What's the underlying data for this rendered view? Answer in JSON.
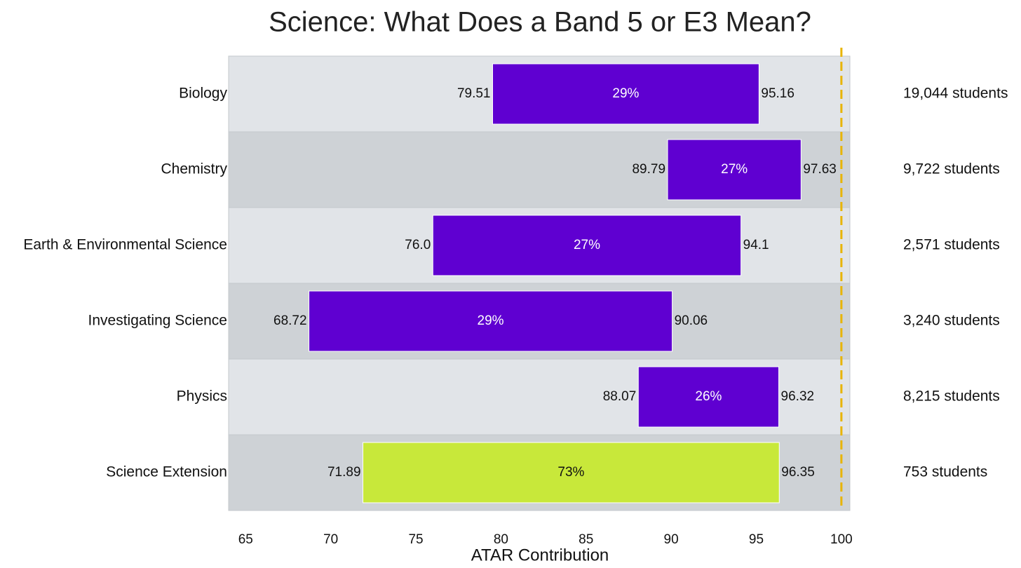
{
  "chart_data": {
    "type": "bar",
    "orientation": "horizontal-range",
    "title": "Science: What Does a Band 5 or E3 Mean?",
    "xlabel": "ATAR Contribution",
    "xlim": [
      64,
      100.5
    ],
    "xticks": [
      65,
      70,
      75,
      80,
      85,
      90,
      95,
      100
    ],
    "reference_line": {
      "x": 100,
      "style": "dashed",
      "color": "#e8b400"
    },
    "band_colors": [
      "#e1e4e8",
      "#ced2d6"
    ],
    "rows": [
      {
        "category": "Biology",
        "low": 79.51,
        "high": 95.16,
        "low_label": "79.51",
        "high_label": "95.16",
        "percent": "29%",
        "students": "19,044 students",
        "color": "#5f00d1",
        "text_color": "#ffffff"
      },
      {
        "category": "Chemistry",
        "low": 89.79,
        "high": 97.63,
        "low_label": "89.79",
        "high_label": "97.63",
        "percent": "27%",
        "students": "9,722 students",
        "color": "#5f00d1",
        "text_color": "#ffffff"
      },
      {
        "category": "Earth & Environmental Science",
        "low": 76.0,
        "high": 94.1,
        "low_label": "76.0",
        "high_label": "94.1",
        "percent": "27%",
        "students": "2,571 students",
        "color": "#5f00d1",
        "text_color": "#ffffff"
      },
      {
        "category": "Investigating Science",
        "low": 68.72,
        "high": 90.06,
        "low_label": "68.72",
        "high_label": "90.06",
        "percent": "29%",
        "students": "3,240 students",
        "color": "#5f00d1",
        "text_color": "#ffffff"
      },
      {
        "category": "Physics",
        "low": 88.07,
        "high": 96.32,
        "low_label": "88.07",
        "high_label": "96.32",
        "percent": "26%",
        "students": "8,215 students",
        "color": "#5f00d1",
        "text_color": "#ffffff"
      },
      {
        "category": "Science Extension",
        "low": 71.89,
        "high": 96.35,
        "low_label": "71.89",
        "high_label": "96.35",
        "percent": "73%",
        "students": "753 students",
        "color": "#c8e83a",
        "text_color": "#111111"
      }
    ]
  }
}
